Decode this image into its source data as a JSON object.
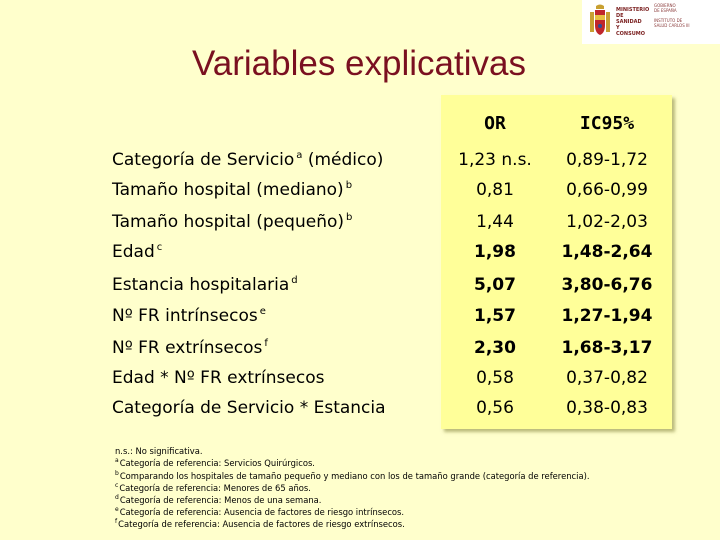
{
  "title": "Variables explicativas",
  "logo": {
    "ministry": "MINISTERIO\nDE SANIDAD\nY CONSUMO",
    "small_text": "GOBIERNO\nDE ESPAÑA\n\nINSTITUTO DE\nSALUD CARLOS III"
  },
  "columns": {
    "or": "OR",
    "ic": "IC95%"
  },
  "rows": [
    {
      "label": "Categoría de Servicio",
      "sup": "a",
      "suffix": " (médico)",
      "or": "1,23 n.s.",
      "ic": "0,89-1,72",
      "bold": false
    },
    {
      "label": "Tamaño hospital (mediano)",
      "sup": "b",
      "suffix": "",
      "or": "0,81",
      "ic": "0,66-0,99",
      "bold": false
    },
    {
      "label": "Tamaño hospital (pequeño)",
      "sup": "b",
      "suffix": "",
      "or": "1,44",
      "ic": "1,02-2,03",
      "bold": false
    },
    {
      "label": "Edad",
      "sup": "c",
      "suffix": "",
      "or": "1,98",
      "ic": "1,48-2,64",
      "bold": true
    },
    {
      "label": "Estancia hospitalaria",
      "sup": "d",
      "suffix": "",
      "or": "5,07",
      "ic": "3,80-6,76",
      "bold": true
    },
    {
      "label": "Nº FR intrínsecos",
      "sup": "e",
      "suffix": "",
      "or": "1,57",
      "ic": "1,27-1,94",
      "bold": true
    },
    {
      "label": "Nº FR extrínsecos",
      "sup": "f",
      "suffix": "",
      "or": "2,30",
      "ic": "1,68-3,17",
      "bold": true
    },
    {
      "label": "Edad * Nº FR extrínsecos",
      "sup": "",
      "suffix": "",
      "or": "0,58",
      "ic": "0,37-0,82",
      "bold": false
    },
    {
      "label": "Categoría de Servicio * Estancia",
      "sup": "",
      "suffix": "",
      "or": "0,56",
      "ic": "0,38-0,83",
      "bold": false
    }
  ],
  "footnotes": [
    {
      "mark": "",
      "text": "n.s.: No significativa."
    },
    {
      "mark": "a",
      "text": "Categoría de referencia: Servicios Quirúrgicos."
    },
    {
      "mark": "b",
      "text": "Comparando los hospitales de tamaño pequeño y mediano con los de tamaño grande (categoría de referencia)."
    },
    {
      "mark": "c",
      "text": "Categoría de referencia: Menores de 65 años."
    },
    {
      "mark": "d",
      "text": "Categoría de referencia: Menos de una semana."
    },
    {
      "mark": "e",
      "text": "Categoría de referencia: Ausencia de factores de riesgo intrínsecos."
    },
    {
      "mark": "f",
      "text": "Categoría de referencia: Ausencia de factores de riesgo extrínsecos."
    }
  ]
}
